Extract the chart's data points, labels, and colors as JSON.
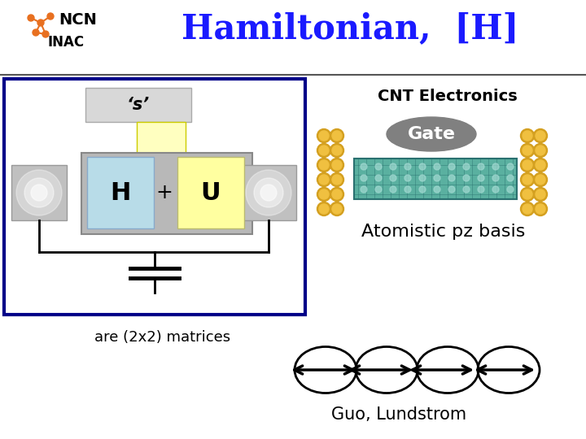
{
  "title": "Hamiltonian,  [H]",
  "title_color": "#1a1aff",
  "title_fontsize": 30,
  "ncn_text": "NCN",
  "inac_text": "INAC",
  "s_label": "‘s’",
  "h_label": "H",
  "plus_label": "+",
  "u_label": "U",
  "cnt_title": "CNT Electronics",
  "gate_label": "Gate",
  "atomistic_label": "Atomistic pz basis",
  "are_label": "are (2x2) matrices",
  "guo_label": "Guo, Lundstrom",
  "bg_color": "#ffffff",
  "header_line_color": "#555555",
  "box_border_color": "#000088",
  "box_fill_color": "#ffffff",
  "s_box_color": "#d8d8d8",
  "h_box_color": "#b8dce8",
  "u_box_color": "#ffffa0",
  "gate_ellipse_color": "#808080",
  "gate_text_color": "#ffffff",
  "orange": "#e87020",
  "gold": "#d4a020",
  "gold_light": "#f0c040",
  "teal_dark": "#2a7070",
  "teal_light": "#5ab0a0"
}
